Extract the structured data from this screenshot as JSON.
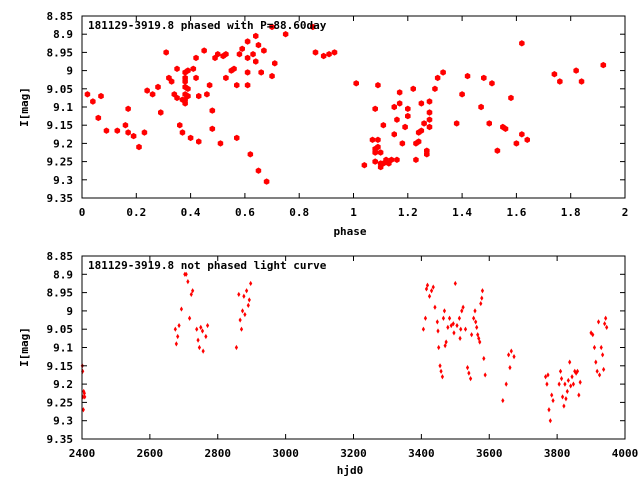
{
  "chart_data": [
    {
      "type": "scatter",
      "title": "181129-3919.8 phased with P=88.60day",
      "xlabel": "phase",
      "ylabel": "I[mag]",
      "xlim": [
        0,
        2
      ],
      "ylim": [
        9.35,
        8.85
      ],
      "y_inverted": true,
      "grid": false,
      "marker_color": "#ff0000",
      "marker": "filled-hexagon",
      "xticks": [
        "0",
        "0.2",
        "0.4",
        "0.6",
        "0.8",
        "1",
        "1.2",
        "1.4",
        "1.6",
        "1.8",
        "2"
      ],
      "yticks": [
        "8.85",
        "8.9",
        "8.95",
        "9",
        "9.05",
        "9.1",
        "9.15",
        "9.2",
        "9.25",
        "9.3",
        "9.35"
      ],
      "points": [
        [
          0.02,
          9.065
        ],
        [
          0.04,
          9.085
        ],
        [
          0.06,
          9.13
        ],
        [
          0.07,
          9.07
        ],
        [
          0.09,
          9.165
        ],
        [
          0.13,
          9.165
        ],
        [
          0.16,
          9.15
        ],
        [
          0.17,
          9.105
        ],
        [
          0.17,
          9.17
        ],
        [
          0.19,
          9.18
        ],
        [
          0.21,
          9.21
        ],
        [
          0.23,
          9.17
        ],
        [
          0.24,
          9.055
        ],
        [
          0.26,
          9.065
        ],
        [
          0.28,
          9.045
        ],
        [
          0.29,
          9.115
        ],
        [
          0.31,
          8.95
        ],
        [
          0.32,
          9.02
        ],
        [
          0.33,
          9.03
        ],
        [
          0.34,
          9.065
        ],
        [
          0.35,
          8.995
        ],
        [
          0.35,
          9.075
        ],
        [
          0.36,
          9.15
        ],
        [
          0.37,
          9.08
        ],
        [
          0.37,
          9.17
        ],
        [
          0.38,
          9.005
        ],
        [
          0.38,
          9.02
        ],
        [
          0.38,
          9.03
        ],
        [
          0.38,
          9.045
        ],
        [
          0.38,
          9.065
        ],
        [
          0.38,
          9.08
        ],
        [
          0.38,
          9.09
        ],
        [
          0.39,
          9.0
        ],
        [
          0.39,
          9.05
        ],
        [
          0.39,
          9.07
        ],
        [
          0.4,
          9.185
        ],
        [
          0.41,
          8.995
        ],
        [
          0.42,
          8.965
        ],
        [
          0.42,
          9.02
        ],
        [
          0.43,
          9.07
        ],
        [
          0.43,
          9.195
        ],
        [
          0.45,
          8.945
        ],
        [
          0.46,
          9.065
        ],
        [
          0.47,
          9.04
        ],
        [
          0.48,
          9.11
        ],
        [
          0.48,
          9.16
        ],
        [
          0.49,
          8.965
        ],
        [
          0.5,
          8.955
        ],
        [
          0.51,
          9.2
        ],
        [
          0.52,
          8.96
        ],
        [
          0.53,
          8.955
        ],
        [
          0.53,
          9.02
        ],
        [
          0.55,
          9.0
        ],
        [
          0.56,
          8.995
        ],
        [
          0.57,
          9.04
        ],
        [
          0.57,
          9.185
        ],
        [
          0.58,
          8.955
        ],
        [
          0.59,
          8.94
        ],
        [
          0.61,
          8.92
        ],
        [
          0.61,
          8.965
        ],
        [
          0.61,
          9.005
        ],
        [
          0.61,
          9.04
        ],
        [
          0.62,
          9.23
        ],
        [
          0.63,
          8.955
        ],
        [
          0.64,
          8.975
        ],
        [
          0.64,
          8.905
        ],
        [
          0.65,
          8.93
        ],
        [
          0.65,
          9.275
        ],
        [
          0.66,
          9.005
        ],
        [
          0.67,
          8.945
        ],
        [
          0.68,
          9.305
        ],
        [
          0.7,
          8.88
        ],
        [
          0.7,
          9.015
        ],
        [
          0.71,
          8.98
        ],
        [
          0.75,
          8.9
        ],
        [
          0.85,
          8.88
        ],
        [
          0.86,
          8.95
        ],
        [
          0.89,
          8.96
        ],
        [
          0.91,
          8.955
        ],
        [
          0.93,
          8.95
        ],
        [
          1.01,
          9.035
        ],
        [
          1.04,
          9.26
        ],
        [
          1.07,
          9.19
        ],
        [
          1.08,
          9.105
        ],
        [
          1.08,
          9.215
        ],
        [
          1.08,
          9.225
        ],
        [
          1.08,
          9.25
        ],
        [
          1.09,
          9.04
        ],
        [
          1.09,
          9.19
        ],
        [
          1.09,
          9.21
        ],
        [
          1.1,
          9.225
        ],
        [
          1.1,
          9.255
        ],
        [
          1.1,
          9.265
        ],
        [
          1.11,
          9.255
        ],
        [
          1.11,
          9.15
        ],
        [
          1.12,
          9.245
        ],
        [
          1.13,
          9.255
        ],
        [
          1.14,
          9.245
        ],
        [
          1.15,
          9.1
        ],
        [
          1.15,
          9.175
        ],
        [
          1.16,
          9.135
        ],
        [
          1.16,
          9.245
        ],
        [
          1.17,
          9.06
        ],
        [
          1.17,
          9.09
        ],
        [
          1.18,
          9.2
        ],
        [
          1.19,
          9.155
        ],
        [
          1.2,
          9.105
        ],
        [
          1.2,
          9.125
        ],
        [
          1.22,
          9.05
        ],
        [
          1.23,
          9.2
        ],
        [
          1.23,
          9.245
        ],
        [
          1.24,
          9.17
        ],
        [
          1.24,
          9.195
        ],
        [
          1.25,
          9.09
        ],
        [
          1.25,
          9.165
        ],
        [
          1.26,
          9.145
        ],
        [
          1.27,
          9.22
        ],
        [
          1.27,
          9.23
        ],
        [
          1.28,
          9.085
        ],
        [
          1.28,
          9.115
        ],
        [
          1.28,
          9.135
        ],
        [
          1.28,
          9.155
        ],
        [
          1.3,
          9.05
        ],
        [
          1.31,
          9.02
        ],
        [
          1.33,
          9.005
        ],
        [
          1.38,
          9.145
        ],
        [
          1.4,
          9.065
        ],
        [
          1.42,
          9.015
        ],
        [
          1.47,
          9.1
        ],
        [
          1.48,
          9.02
        ],
        [
          1.5,
          9.145
        ],
        [
          1.51,
          9.035
        ],
        [
          1.53,
          9.22
        ],
        [
          1.55,
          9.155
        ],
        [
          1.56,
          9.16
        ],
        [
          1.58,
          9.075
        ],
        [
          1.6,
          9.2
        ],
        [
          1.62,
          9.175
        ],
        [
          1.62,
          8.925
        ],
        [
          1.64,
          9.19
        ],
        [
          1.74,
          9.01
        ],
        [
          1.76,
          9.03
        ],
        [
          1.82,
          9.0
        ],
        [
          1.84,
          9.03
        ],
        [
          1.92,
          8.985
        ]
      ]
    },
    {
      "type": "scatter",
      "title": "181129-3919.8 not phased light curve",
      "xlabel": "hjd0",
      "ylabel": "I[mag]",
      "xlim": [
        2400,
        4000
      ],
      "ylim": [
        9.35,
        8.85
      ],
      "y_inverted": true,
      "grid": false,
      "marker_color": "#ff0000",
      "marker": "small-diamond",
      "xticks": [
        "2400",
        "2600",
        "2800",
        "3000",
        "3200",
        "3400",
        "3600",
        "3800",
        "4000"
      ],
      "yticks": [
        "8.85",
        "8.9",
        "8.95",
        "9",
        "9.05",
        "9.1",
        "9.15",
        "9.2",
        "9.25",
        "9.3",
        "9.35"
      ],
      "points": [
        [
          2401,
          9.15
        ],
        [
          2402,
          9.165
        ],
        [
          2403,
          9.235
        ],
        [
          2404,
          9.27
        ],
        [
          2405,
          9.22
        ],
        [
          2407,
          9.225
        ],
        [
          2408,
          9.235
        ],
        [
          2675,
          9.05
        ],
        [
          2678,
          9.09
        ],
        [
          2682,
          9.07
        ],
        [
          2686,
          9.04
        ],
        [
          2693,
          8.995
        ],
        [
          2703,
          8.9
        ],
        [
          2707,
          8.9
        ],
        [
          2712,
          8.92
        ],
        [
          2717,
          9.02
        ],
        [
          2722,
          8.955
        ],
        [
          2726,
          8.945
        ],
        [
          2738,
          9.05
        ],
        [
          2742,
          9.08
        ],
        [
          2746,
          9.1
        ],
        [
          2750,
          9.045
        ],
        [
          2755,
          9.055
        ],
        [
          2757,
          9.11
        ],
        [
          2765,
          9.07
        ],
        [
          2770,
          9.04
        ],
        [
          2855,
          9.1
        ],
        [
          2862,
          8.955
        ],
        [
          2866,
          9.025
        ],
        [
          2870,
          9.05
        ],
        [
          2873,
          9.0
        ],
        [
          2877,
          8.96
        ],
        [
          2880,
          9.01
        ],
        [
          2885,
          8.945
        ],
        [
          2890,
          8.985
        ],
        [
          2893,
          8.97
        ],
        [
          2897,
          8.925
        ],
        [
          3406,
          9.05
        ],
        [
          3412,
          9.02
        ],
        [
          3415,
          8.94
        ],
        [
          3418,
          8.93
        ],
        [
          3424,
          8.96
        ],
        [
          3430,
          8.945
        ],
        [
          3435,
          8.935
        ],
        [
          3440,
          8.99
        ],
        [
          3447,
          9.03
        ],
        [
          3449,
          9.055
        ],
        [
          3451,
          9.1
        ],
        [
          3455,
          9.15
        ],
        [
          3458,
          9.165
        ],
        [
          3462,
          9.18
        ],
        [
          3465,
          9.02
        ],
        [
          3468,
          9.0
        ],
        [
          3470,
          9.095
        ],
        [
          3473,
          9.085
        ],
        [
          3478,
          9.045
        ],
        [
          3483,
          9.02
        ],
        [
          3488,
          9.04
        ],
        [
          3494,
          9.035
        ],
        [
          3496,
          9.06
        ],
        [
          3500,
          8.925
        ],
        [
          3505,
          9.04
        ],
        [
          3512,
          9.02
        ],
        [
          3514,
          9.075
        ],
        [
          3516,
          9.05
        ],
        [
          3519,
          9.0
        ],
        [
          3523,
          8.99
        ],
        [
          3530,
          9.05
        ],
        [
          3536,
          9.155
        ],
        [
          3540,
          9.17
        ],
        [
          3545,
          9.185
        ],
        [
          3548,
          9.065
        ],
        [
          3554,
          9.02
        ],
        [
          3558,
          9.0
        ],
        [
          3560,
          9.03
        ],
        [
          3563,
          9.045
        ],
        [
          3566,
          9.065
        ],
        [
          3569,
          9.075
        ],
        [
          3572,
          9.085
        ],
        [
          3575,
          8.98
        ],
        [
          3578,
          8.965
        ],
        [
          3580,
          8.945
        ],
        [
          3584,
          9.13
        ],
        [
          3588,
          9.175
        ],
        [
          3640,
          9.245
        ],
        [
          3650,
          9.2
        ],
        [
          3657,
          9.12
        ],
        [
          3661,
          9.155
        ],
        [
          3665,
          9.11
        ],
        [
          3673,
          9.125
        ],
        [
          3766,
          9.18
        ],
        [
          3770,
          9.2
        ],
        [
          3773,
          9.175
        ],
        [
          3776,
          9.27
        ],
        [
          3780,
          9.3
        ],
        [
          3784,
          9.23
        ],
        [
          3788,
          9.245
        ],
        [
          3806,
          9.2
        ],
        [
          3810,
          9.165
        ],
        [
          3813,
          9.185
        ],
        [
          3816,
          9.235
        ],
        [
          3820,
          9.26
        ],
        [
          3823,
          9.2
        ],
        [
          3826,
          9.24
        ],
        [
          3830,
          9.22
        ],
        [
          3833,
          9.19
        ],
        [
          3837,
          9.14
        ],
        [
          3840,
          9.205
        ],
        [
          3844,
          9.18
        ],
        [
          3848,
          9.2
        ],
        [
          3852,
          9.165
        ],
        [
          3856,
          9.17
        ],
        [
          3860,
          9.165
        ],
        [
          3864,
          9.23
        ],
        [
          3868,
          9.195
        ],
        [
          3900,
          9.06
        ],
        [
          3905,
          9.065
        ],
        [
          3910,
          9.1
        ],
        [
          3914,
          9.14
        ],
        [
          3918,
          9.165
        ],
        [
          3922,
          9.03
        ],
        [
          3925,
          9.175
        ],
        [
          3930,
          9.1
        ],
        [
          3934,
          9.12
        ],
        [
          3937,
          9.16
        ],
        [
          3940,
          9.035
        ],
        [
          3943,
          9.02
        ],
        [
          3946,
          9.045
        ]
      ]
    }
  ]
}
